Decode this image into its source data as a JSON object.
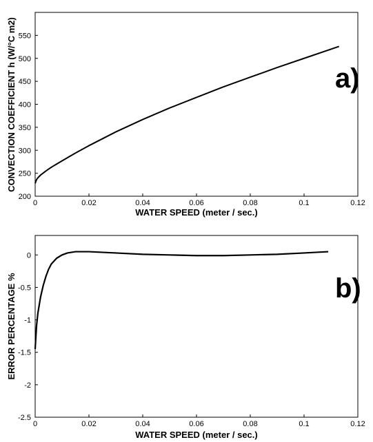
{
  "chart_data": [
    {
      "type": "line",
      "panel_label": "a)",
      "xlabel": "WATER SPEED  (meter / sec.)",
      "ylabel": "CONVECTION COEFFICIENT  h  (W/°C m2)",
      "xlim": [
        0,
        0.12
      ],
      "ylim": [
        200,
        600
      ],
      "x_ticks": [
        "0",
        "0.02",
        "0.04",
        "0.06",
        "0.08",
        "0.1",
        "0.12"
      ],
      "x_tick_values": [
        0,
        0.02,
        0.04,
        0.06,
        0.08,
        0.1,
        0.12
      ],
      "y_ticks": [
        "200",
        "250",
        "300",
        "350",
        "400",
        "450",
        "500",
        "550"
      ],
      "y_tick_values": [
        200,
        250,
        300,
        350,
        400,
        450,
        500,
        550
      ],
      "grid": false,
      "line_color": "#000000",
      "series": [
        {
          "x": [
            0,
            0.0005,
            0.001,
            0.002,
            0.004,
            0.006,
            0.008,
            0.01,
            0.015,
            0.02,
            0.03,
            0.04,
            0.05,
            0.06,
            0.07,
            0.08,
            0.09,
            0.1,
            0.113
          ],
          "values": [
            228,
            236,
            240,
            246,
            255,
            263,
            270,
            277,
            294,
            310,
            340,
            367,
            392,
            415,
            438,
            459,
            480,
            500,
            526
          ]
        }
      ]
    },
    {
      "type": "line",
      "panel_label": "b)",
      "xlabel": "WATER SPEED  (meter / sec.)",
      "ylabel": "ERROR PERCENTAGE %",
      "xlim": [
        0,
        0.12
      ],
      "ylim": [
        -2.5,
        0.3
      ],
      "x_ticks": [
        "0",
        "0.02",
        "0.04",
        "0.06",
        "0.08",
        "0.1",
        "0.12"
      ],
      "x_tick_values": [
        0,
        0.02,
        0.04,
        0.06,
        0.08,
        0.1,
        0.12
      ],
      "y_ticks": [
        "-2.5",
        "-2",
        "-1.5",
        "-1",
        "-0.5",
        "0"
      ],
      "y_tick_values": [
        -2.5,
        -2,
        -1.5,
        -1,
        -0.5,
        0
      ],
      "grid": false,
      "line_color": "#000000",
      "series": [
        {
          "x": [
            0,
            0.0005,
            0.001,
            0.002,
            0.003,
            0.004,
            0.005,
            0.006,
            0.008,
            0.01,
            0.012,
            0.015,
            0.02,
            0.03,
            0.04,
            0.05,
            0.06,
            0.07,
            0.08,
            0.09,
            0.1,
            0.109
          ],
          "values": [
            -1.45,
            -1.1,
            -0.9,
            -0.65,
            -0.47,
            -0.33,
            -0.22,
            -0.14,
            -0.05,
            0.0,
            0.03,
            0.05,
            0.05,
            0.03,
            0.01,
            0.0,
            -0.01,
            -0.01,
            0.0,
            0.01,
            0.03,
            0.05
          ]
        }
      ]
    }
  ]
}
